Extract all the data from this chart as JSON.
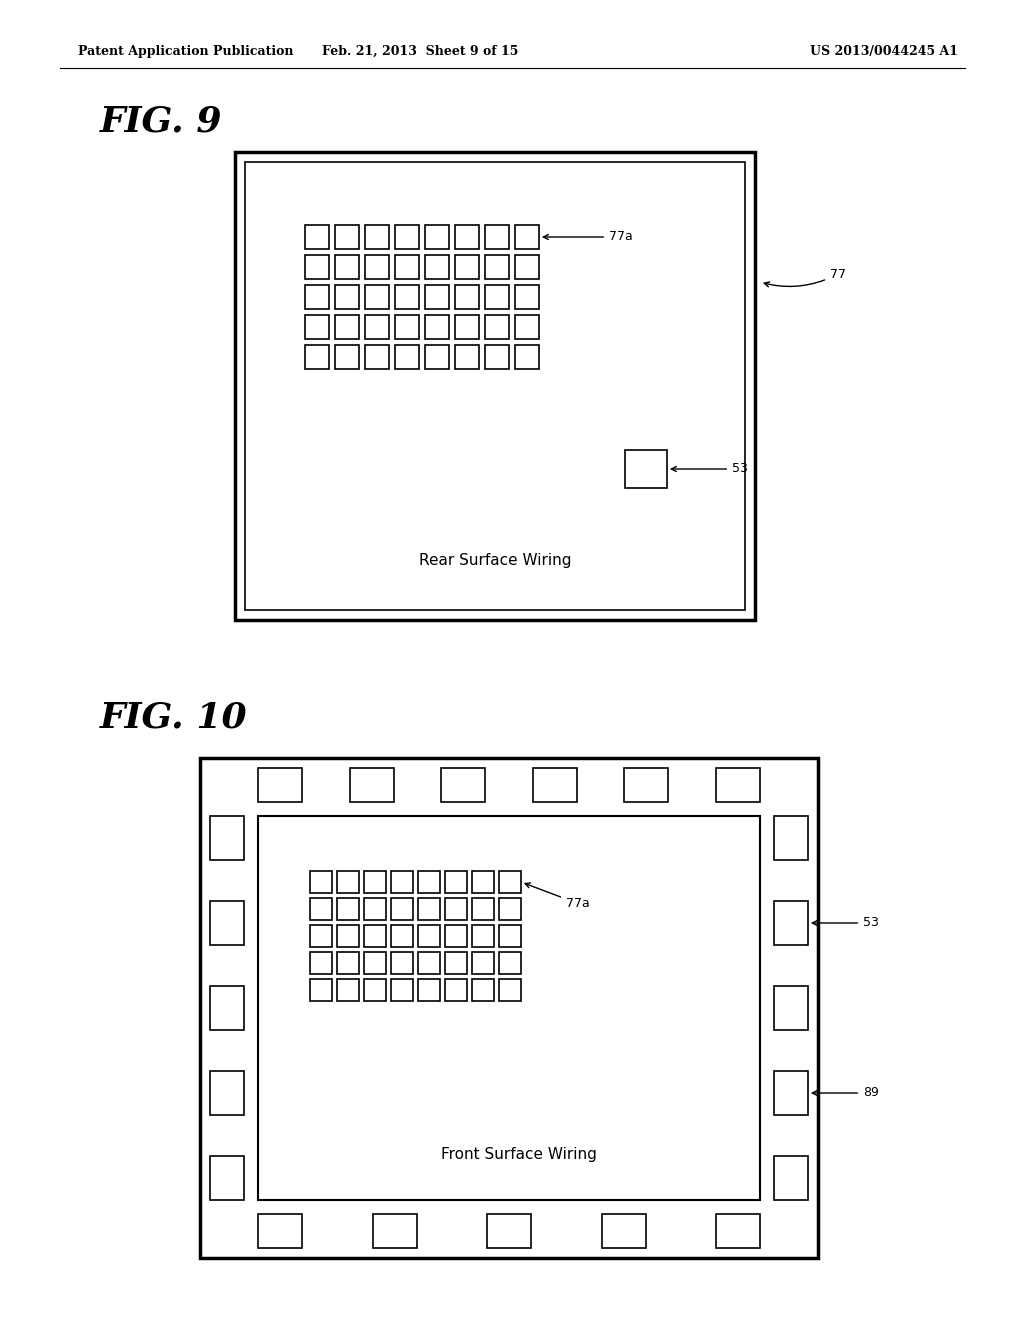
{
  "header_left": "Patent Application Publication",
  "header_mid": "Feb. 21, 2013  Sheet 9 of 15",
  "header_right": "US 2013/0044245 A1",
  "fig9_title": "FIG. 9",
  "fig10_title": "FIG. 10",
  "fig9_label_rear": "Rear Surface Wiring",
  "fig10_label_front": "Front Surface Wiring",
  "label_77a": "77a",
  "label_77": "77",
  "label_53": "53",
  "label_89": "89",
  "bg_color": "#ffffff",
  "grid_cols": 8,
  "grid_rows": 5
}
